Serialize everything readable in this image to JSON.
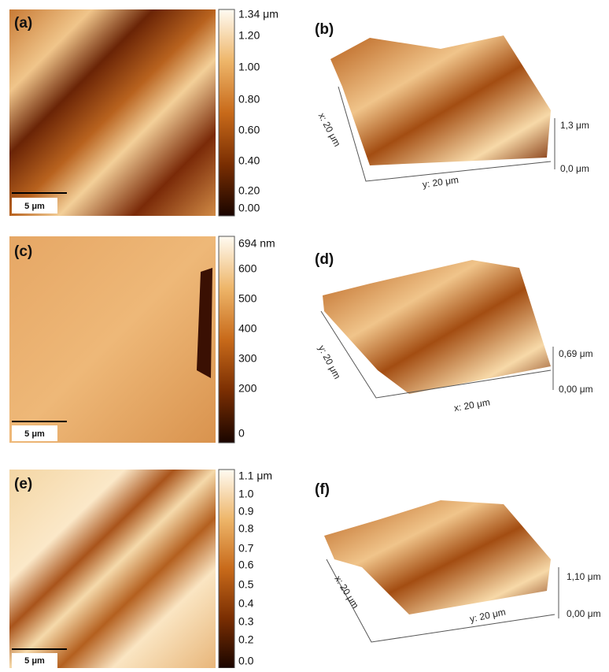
{
  "panels": [
    {
      "label": "(a)",
      "scale_bar": "5 μm",
      "colorbar": [
        "1.34 μm",
        "1.20",
        "1.00",
        "0.80",
        "0.60",
        "0.40",
        "0.20",
        "0.00"
      ]
    },
    {
      "label": "(b)",
      "axes": [
        "x: 20 μm",
        "y: 20 μm"
      ],
      "z_labels": [
        "1,3 μm",
        "0,0 μm"
      ]
    },
    {
      "label": "(c)",
      "scale_bar": "5 μm",
      "colorbar": [
        "694 nm",
        "600",
        "500",
        "400",
        "300",
        "200",
        "0"
      ]
    },
    {
      "label": "(d)",
      "axes": [
        "y: 20 μm",
        "x: 20 μm"
      ],
      "z_labels": [
        "0,69 μm",
        "0,00 μm"
      ]
    },
    {
      "label": "(e)",
      "scale_bar": "5 μm",
      "colorbar": [
        "1.1 μm",
        "1.0",
        "0.9",
        "0.8",
        "0.7",
        "0.6",
        "0.5",
        "0.4",
        "0.3",
        "0.2",
        "0.0"
      ]
    },
    {
      "label": "(f)",
      "axes": [
        "x: 20 μm",
        "y: 20 μm"
      ],
      "z_labels": [
        "1,10 μm",
        "0,00 μm"
      ]
    }
  ]
}
